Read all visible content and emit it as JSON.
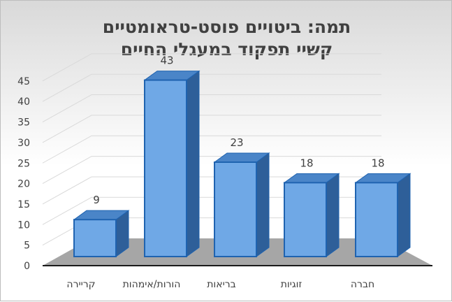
{
  "chart_data": {
    "type": "bar",
    "title_lines": [
      "תמה: ביטויים פוסט-טראומטיים",
      "קשיי תפקוד במעגלי החיים"
    ],
    "categories": [
      "קריירה",
      "הורות/אימהות",
      "בריאות",
      "זוגיות",
      "חברה"
    ],
    "values": [
      9,
      43,
      23,
      18,
      18
    ],
    "yticks": [
      0,
      5,
      10,
      15,
      20,
      25,
      30,
      35,
      40,
      45
    ],
    "ylim": [
      0,
      45
    ],
    "xlabel": "",
    "ylabel": "",
    "grid": true,
    "legend": "none"
  },
  "colors": {
    "bar_front": "#6fa8e6",
    "bar_side": "#2e5f99",
    "bar_top": "#4a85c8",
    "bar_edge": "#1f63b0",
    "floor": "#a6a6a6",
    "gridline": "#d9d9d9",
    "text": "#404040"
  }
}
